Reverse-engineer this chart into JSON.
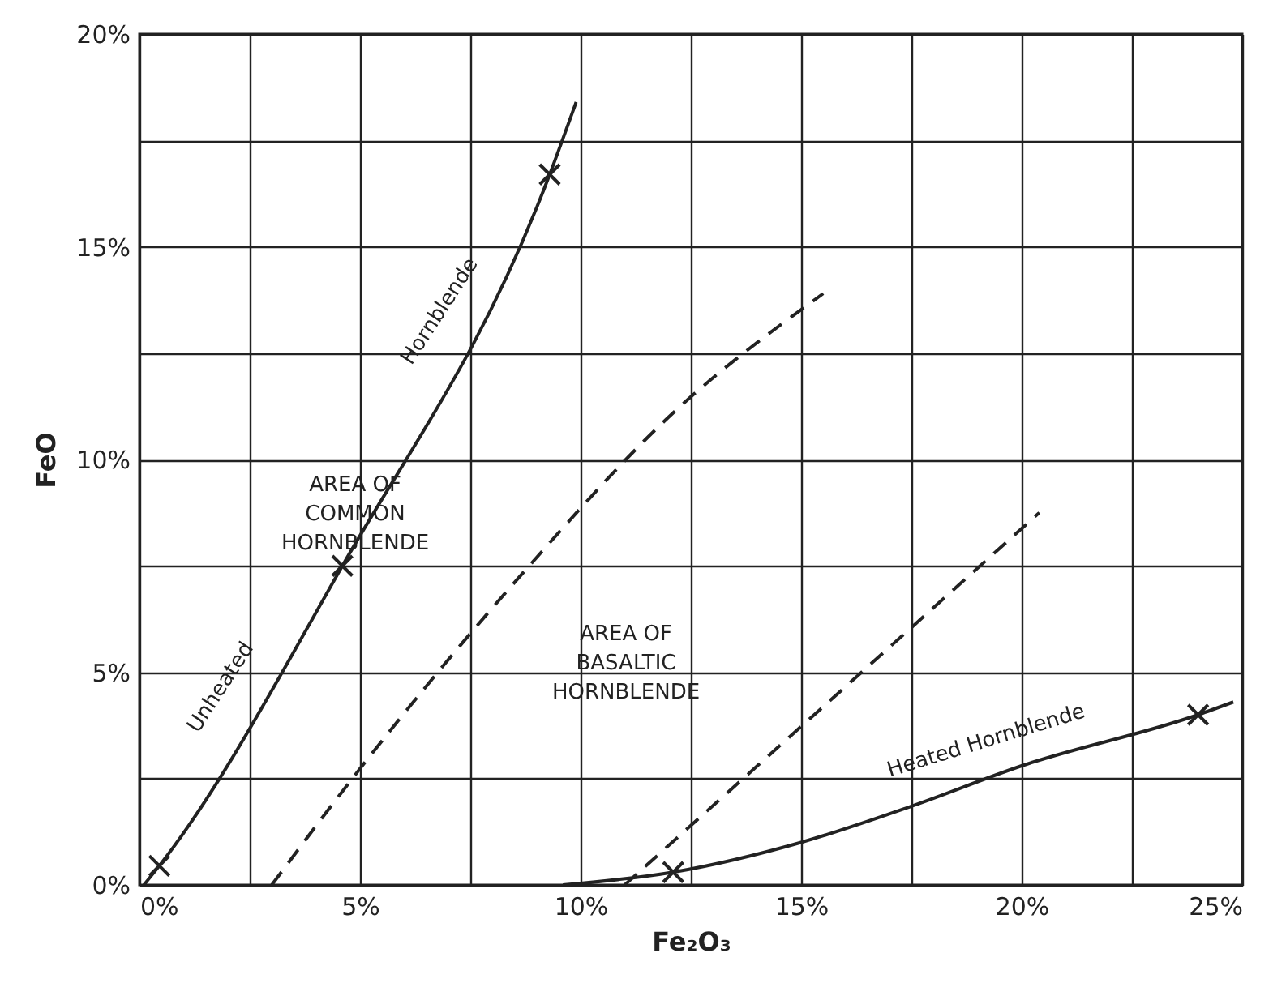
{
  "chart_data": {
    "type": "line",
    "xlabel": "Fe₂O₃",
    "ylabel": "FeO",
    "xlim": [
      0,
      25
    ],
    "ylim": [
      0,
      20
    ],
    "xticks": [
      {
        "value": 0,
        "label": "0%"
      },
      {
        "value": 2.5,
        "label": null
      },
      {
        "value": 5,
        "label": "5%"
      },
      {
        "value": 7.5,
        "label": null
      },
      {
        "value": 10,
        "label": "10%"
      },
      {
        "value": 12.5,
        "label": null
      },
      {
        "value": 15,
        "label": "15%"
      },
      {
        "value": 17.5,
        "label": null
      },
      {
        "value": 20,
        "label": "20%"
      },
      {
        "value": 22.5,
        "label": null
      },
      {
        "value": 25,
        "label": "25%"
      }
    ],
    "yticks": [
      {
        "value": 0,
        "label": "0%"
      },
      {
        "value": 2.5,
        "label": null
      },
      {
        "value": 5,
        "label": "5%"
      },
      {
        "value": 7.5,
        "label": null
      },
      {
        "value": 10,
        "label": "10%"
      },
      {
        "value": 12.5,
        "label": null
      },
      {
        "value": 15,
        "label": "15%"
      },
      {
        "value": 17.5,
        "label": null
      },
      {
        "value": 20,
        "label": "20%"
      }
    ],
    "grid": true,
    "series": [
      {
        "type": "line",
        "color": "#222222",
        "line_style": "solid",
        "x": [
          0.1,
          0.45,
          4.6,
          9.3,
          9.9
        ],
        "values": [
          0.0,
          0.45,
          7.5,
          16.7,
          18.4
        ]
      },
      {
        "type": "line",
        "color": "#222222",
        "line_style": "solid",
        "x": [
          9.6,
          12.1,
          15,
          17.5,
          20,
          24.0,
          24.8
        ],
        "values": [
          0.0,
          0.3,
          1.0,
          1.85,
          2.8,
          4.0,
          4.3
        ]
      },
      {
        "type": "line",
        "color": "#222222",
        "line_style": "dashed",
        "x": [
          3.0,
          4.9,
          8.75,
          12.0,
          15.5
        ],
        "values": [
          0.0,
          2.6,
          7.4,
          11.0,
          13.9
        ]
      },
      {
        "type": "line",
        "color": "#222222",
        "line_style": "dashed",
        "x": [
          11.0,
          20.4
        ],
        "values": [
          0.0,
          8.75
        ]
      },
      {
        "type": "scatter",
        "color": "#222222",
        "marker": "cross",
        "x": [
          0.45,
          4.6,
          9.3,
          12.1,
          24.0
        ],
        "values": [
          0.45,
          7.5,
          16.7,
          0.3,
          4.0
        ]
      }
    ],
    "annotations": [
      "Unheated",
      "Hornblende",
      "AREA OF\nCOMMON\nHORNBLENDE",
      "AREA OF\nBASALTIC\nHORNBLENDE",
      "Heated Hornblende"
    ]
  }
}
